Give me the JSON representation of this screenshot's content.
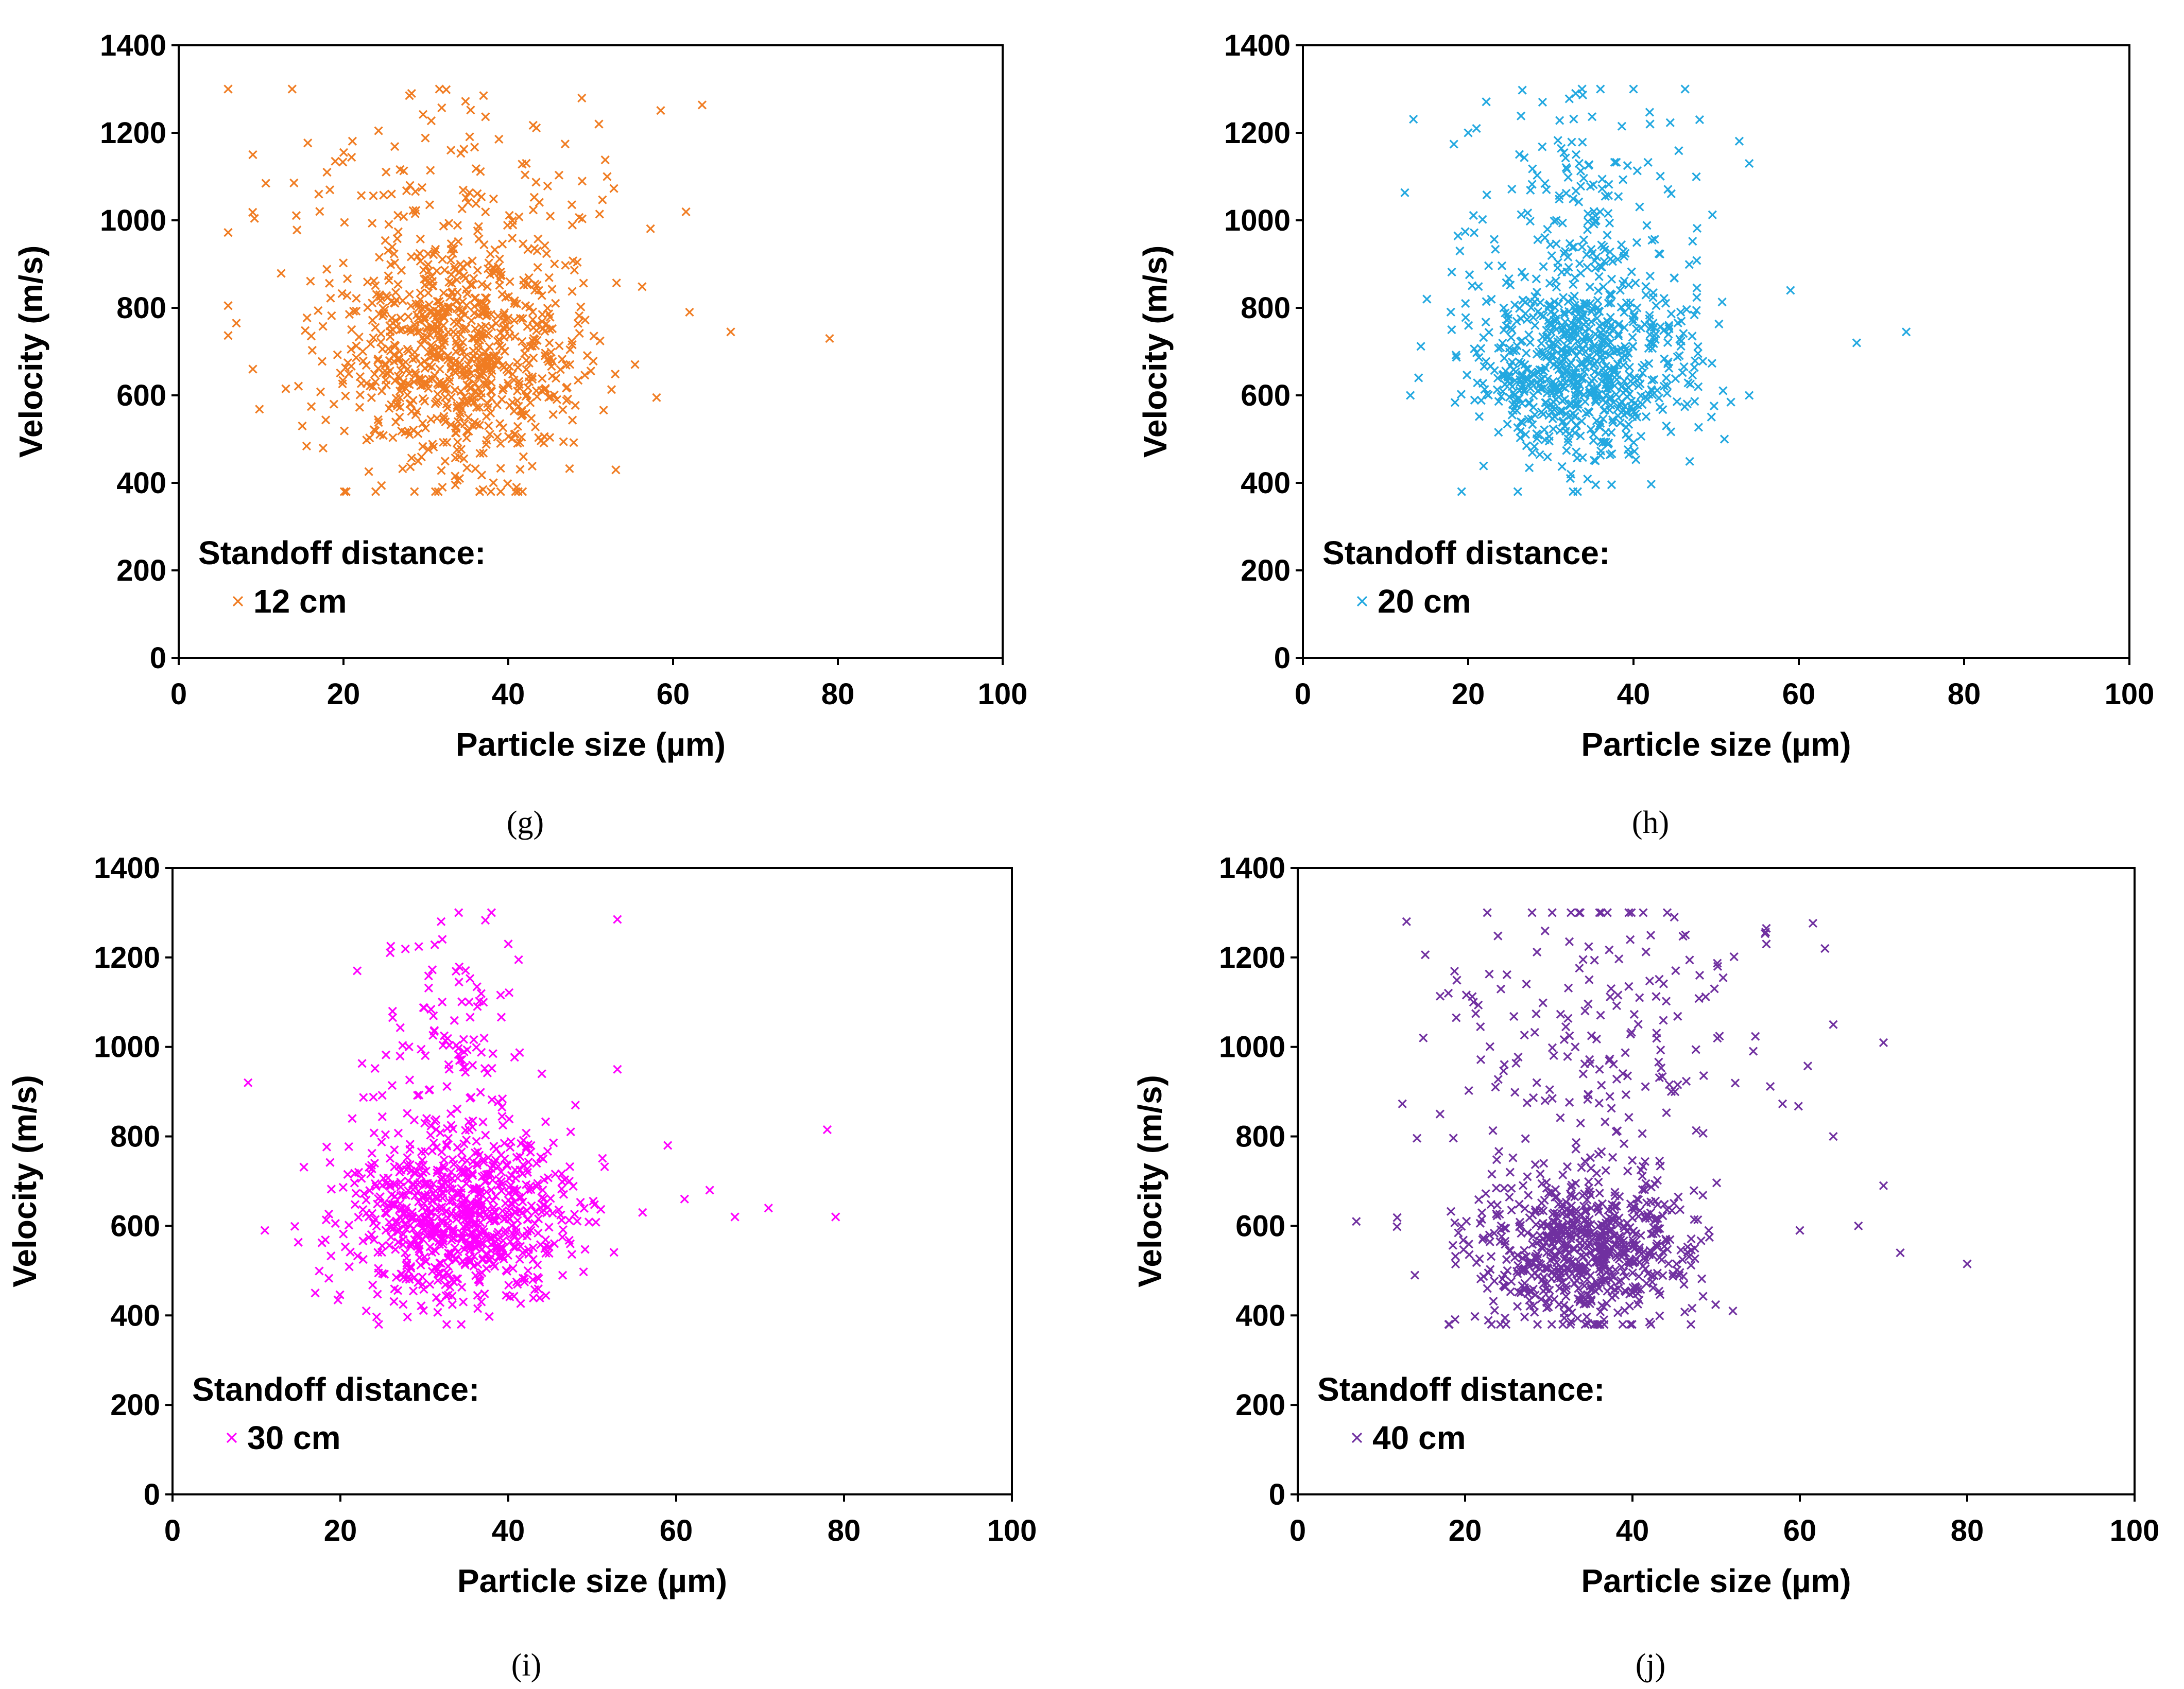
{
  "figure": {
    "axis_title_x": "Particle size (µm)",
    "axis_title_y": "Velocity (m/s)",
    "legend_title": "Standoff distance:"
  },
  "chart_data": [
    {
      "type": "scatter",
      "caption": "(g)",
      "title": "",
      "xlabel": "Particle size (µm)",
      "ylabel": "Velocity (m/s)",
      "xlim": [
        0,
        100
      ],
      "ylim": [
        0,
        1400
      ],
      "xticks": [
        0,
        20,
        40,
        60,
        80,
        100
      ],
      "yticks": [
        0,
        200,
        400,
        600,
        800,
        1000,
        1200,
        1400
      ],
      "grid": false,
      "legend_position": "bottom-left",
      "marker": "x",
      "color": "#F07C22",
      "series": [
        {
          "name": "12 cm",
          "seed": 12,
          "count": 950,
          "clusters": [
            {
              "weight": 0.86,
              "mx": 34,
              "sx": 7.5,
              "my": 705,
              "sy": 135
            },
            {
              "weight": 0.14,
              "mx": 33,
              "sx": 11,
              "my": 1020,
              "sy": 150
            }
          ],
          "outliers": [
            [
              6,
              805
            ],
            [
              7,
              765
            ],
            [
              9,
              1150
            ],
            [
              9,
              660
            ],
            [
              13,
              615
            ],
            [
              15,
              530
            ],
            [
              17,
              1060
            ],
            [
              18,
              1110
            ],
            [
              19,
              1135
            ],
            [
              28,
              1285
            ],
            [
              32,
              390
            ],
            [
              37,
              1285
            ],
            [
              41,
              390
            ],
            [
              51,
              1220
            ],
            [
              52,
              1100
            ],
            [
              58,
              595
            ],
            [
              62,
              790
            ],
            [
              67,
              745
            ],
            [
              79,
              730
            ]
          ]
        }
      ]
    },
    {
      "type": "scatter",
      "caption": "(h)",
      "title": "",
      "xlabel": "Particle size (µm)",
      "ylabel": "Velocity (m/s)",
      "xlim": [
        0,
        100
      ],
      "ylim": [
        0,
        1400
      ],
      "xticks": [
        0,
        20,
        40,
        60,
        80,
        100
      ],
      "yticks": [
        0,
        200,
        400,
        600,
        800,
        1000,
        1200,
        1400
      ],
      "grid": false,
      "legend_position": "bottom-left",
      "marker": "x",
      "color": "#22A8E0",
      "series": [
        {
          "name": "20 cm",
          "seed": 20,
          "count": 900,
          "clusters": [
            {
              "weight": 0.85,
              "mx": 34,
              "sx": 6.5,
              "my": 670,
              "sy": 110
            },
            {
              "weight": 0.15,
              "mx": 34,
              "sx": 8,
              "my": 1000,
              "sy": 140
            }
          ],
          "outliers": [
            [
              13,
              600
            ],
            [
              14,
              640
            ],
            [
              15,
              820
            ],
            [
              18,
              750
            ],
            [
              19,
              930
            ],
            [
              20,
              1200
            ],
            [
              21,
              1210
            ],
            [
              26,
              380
            ],
            [
              29,
              1270
            ],
            [
              33,
              1290
            ],
            [
              36,
              1300
            ],
            [
              40,
              1300
            ],
            [
              42,
              1220
            ],
            [
              48,
              1230
            ],
            [
              51,
              500
            ],
            [
              54,
              1130
            ],
            [
              54,
              600
            ],
            [
              59,
              840
            ],
            [
              67,
              720
            ],
            [
              73,
              745
            ]
          ]
        }
      ]
    },
    {
      "type": "scatter",
      "caption": "(i)",
      "title": "",
      "xlabel": "Particle size (µm)",
      "ylabel": "Velocity (m/s)",
      "xlim": [
        0,
        100
      ],
      "ylim": [
        0,
        1400
      ],
      "xticks": [
        0,
        20,
        40,
        60,
        80,
        100
      ],
      "yticks": [
        0,
        200,
        400,
        600,
        800,
        1000,
        1200,
        1400
      ],
      "grid": false,
      "legend_position": "bottom-left",
      "marker": "x",
      "color": "#FF00FF",
      "series": [
        {
          "name": "30 cm",
          "seed": 30,
          "count": 900,
          "clusters": [
            {
              "weight": 0.88,
              "mx": 34,
              "sx": 6.5,
              "my": 620,
              "sy": 95
            },
            {
              "weight": 0.12,
              "mx": 33,
              "sx": 4,
              "my": 980,
              "sy": 150
            }
          ],
          "outliers": [
            [
              9,
              920
            ],
            [
              11,
              590
            ],
            [
              17,
              450
            ],
            [
              22,
              1170
            ],
            [
              26,
              1225
            ],
            [
              32,
              1280
            ],
            [
              38,
              1300
            ],
            [
              40,
              1230
            ],
            [
              44,
              940
            ],
            [
              48,
              870
            ],
            [
              53,
              1285
            ],
            [
              53,
              950
            ],
            [
              56,
              630
            ],
            [
              59,
              780
            ],
            [
              61,
              660
            ],
            [
              64,
              680
            ],
            [
              67,
              620
            ],
            [
              71,
              640
            ],
            [
              78,
              815
            ],
            [
              79,
              620
            ]
          ]
        }
      ]
    },
    {
      "type": "scatter",
      "caption": "(j)",
      "title": "",
      "xlabel": "Particle size (µm)",
      "ylabel": "Velocity (m/s)",
      "xlim": [
        0,
        100
      ],
      "ylim": [
        0,
        1400
      ],
      "xticks": [
        0,
        20,
        40,
        60,
        80,
        100
      ],
      "yticks": [
        0,
        200,
        400,
        600,
        800,
        1000,
        1200,
        1400
      ],
      "grid": false,
      "legend_position": "bottom-left",
      "marker": "x",
      "color": "#7030A0",
      "series": [
        {
          "name": "40 cm",
          "seed": 40,
          "count": 900,
          "clusters": [
            {
              "weight": 0.8,
              "mx": 34,
              "sx": 6.5,
              "my": 540,
              "sy": 80
            },
            {
              "weight": 0.2,
              "mx": 36,
              "sx": 10,
              "my": 950,
              "sy": 200
            }
          ],
          "outliers": [
            [
              7,
              610
            ],
            [
              13,
              1280
            ],
            [
              14,
              490
            ],
            [
              15,
              1020
            ],
            [
              17,
              850
            ],
            [
              18,
              1120
            ],
            [
              21,
              1100
            ],
            [
              28,
              1300
            ],
            [
              37,
              1300
            ],
            [
              45,
              1290
            ],
            [
              52,
              410
            ],
            [
              56,
              1265
            ],
            [
              56,
              1230
            ],
            [
              60,
              590
            ],
            [
              63,
              1220
            ],
            [
              64,
              1050
            ],
            [
              64,
              800
            ],
            [
              67,
              600
            ],
            [
              70,
              690
            ],
            [
              72,
              540
            ],
            [
              80,
              515
            ]
          ]
        }
      ]
    }
  ]
}
